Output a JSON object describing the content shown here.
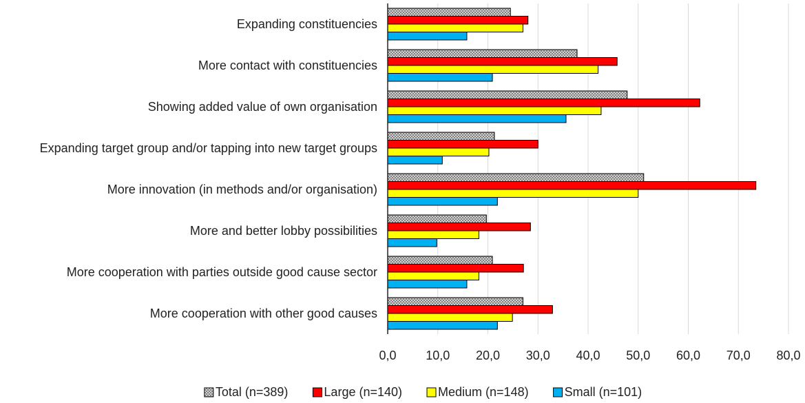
{
  "chart_data": {
    "type": "barh",
    "categories": [
      "Expanding constituencies",
      "More contact with constituencies",
      "Showing added value of own organisation",
      "Expanding target group and/or tapping into new target groups",
      "More innovation (in methods and/or organisation)",
      "More and better lobby possibilities",
      "More cooperation with parties outside good cause sector",
      "More cooperation with other good causes"
    ],
    "series": [
      {
        "name": "Total (n=389)",
        "color": "#808080",
        "pattern": "crosshatch",
        "values": [
          24.5,
          37.8,
          47.8,
          21.3,
          51.1,
          19.7,
          20.9,
          27.0
        ]
      },
      {
        "name": "Large (n=140)",
        "color": "#ff0000",
        "values": [
          28.0,
          45.8,
          62.3,
          30.0,
          73.5,
          28.5,
          27.1,
          32.9
        ]
      },
      {
        "name": "Medium (n=148)",
        "color": "#ffff00",
        "values": [
          27.0,
          42.0,
          42.6,
          20.2,
          50.0,
          18.2,
          18.2,
          24.9
        ]
      },
      {
        "name": "Small (n=101)",
        "color": "#00b0f0",
        "values": [
          15.8,
          20.9,
          35.6,
          10.9,
          21.9,
          9.8,
          15.8,
          21.9
        ]
      }
    ],
    "xlim": [
      0,
      80
    ],
    "xticks": [
      {
        "value": 0,
        "label": "0,0"
      },
      {
        "value": 10,
        "label": "10,0"
      },
      {
        "value": 20,
        "label": "20,0"
      },
      {
        "value": 30,
        "label": "30,0"
      },
      {
        "value": 40,
        "label": "40,0"
      },
      {
        "value": 50,
        "label": "50,0"
      },
      {
        "value": 60,
        "label": "60,0"
      },
      {
        "value": 70,
        "label": "70,0"
      },
      {
        "value": 80,
        "label": "80,0"
      }
    ],
    "grid": true,
    "legend": "bottom"
  }
}
